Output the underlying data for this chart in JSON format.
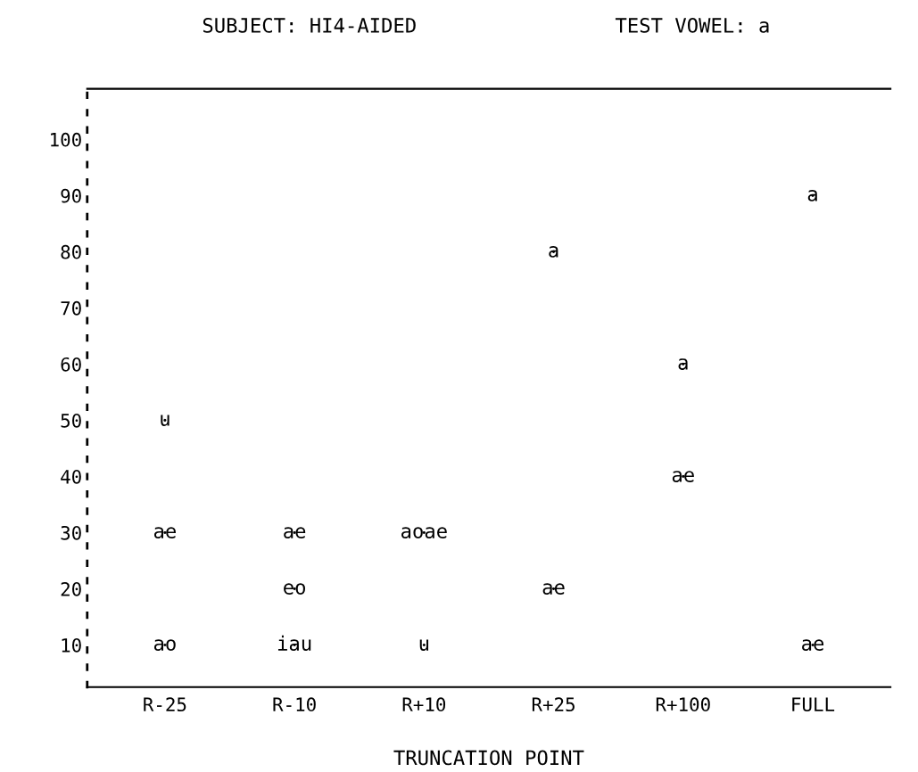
{
  "chart_data": {
    "type": "scatter",
    "title": "SUBJECT: HI4-AIDED",
    "subtitle": "TEST VOWEL: a",
    "xlabel": "TRUNCATION POINT",
    "categories": [
      "R-25",
      "R-10",
      "R+10",
      "R+25",
      "R+100",
      "FULL"
    ],
    "series": [
      {
        "color": "#000000",
        "x": [
          "R-25",
          "R-25",
          "R-25",
          "R-10",
          "R-10",
          "R-10",
          "R+10",
          "R+10",
          "R+25",
          "R+25",
          "R+100",
          "R+100",
          "FULL",
          "FULL"
        ],
        "values": [
          50,
          30,
          10,
          30,
          20,
          10,
          30,
          10,
          80,
          20,
          60,
          40,
          90,
          10
        ],
        "value_labels": [
          "u",
          "ae",
          "ao",
          "ae",
          "eo",
          "iau",
          "aoae",
          "u",
          "a",
          "ae",
          "a",
          "ae",
          "a",
          "ae"
        ]
      }
    ],
    "ylim": [
      2.5,
      109
    ],
    "yticks": [
      10,
      20,
      30,
      40,
      50,
      60,
      70,
      80,
      90,
      100
    ],
    "grid": false,
    "legend": false,
    "marker": "none"
  }
}
